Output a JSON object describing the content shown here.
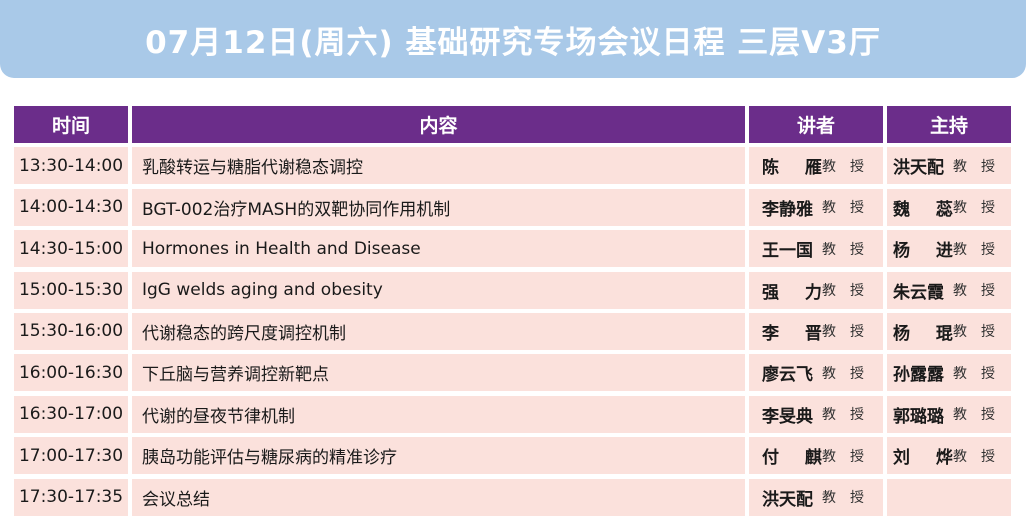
{
  "title": "07月12日(周六) 基础研究专场会议日程 三层V3厅",
  "colors": {
    "banner": "#a9c9e8",
    "header": "#6b2d8a",
    "row": "#fbe1dc"
  },
  "columns": {
    "time": "时间",
    "topic": "内容",
    "speaker": "讲者",
    "host": "主持"
  },
  "rows": [
    {
      "time": "13:30-14:00",
      "topic": "乳酸转运与糖脂代谢稳态调控",
      "speaker": "陈 雁",
      "speaker_title": "教授",
      "host": "洪天配",
      "host_title": "教授"
    },
    {
      "time": "14:00-14:30",
      "topic": "BGT-002治疗MASH的双靶协同作用机制",
      "speaker": "李静雅",
      "speaker_title": "教授",
      "host": "魏 蕊",
      "host_title": "教授"
    },
    {
      "time": "14:30-15:00",
      "topic": "Hormones in Health and Disease",
      "speaker": "王一国",
      "speaker_title": "教授",
      "host": "杨 进",
      "host_title": "教授"
    },
    {
      "time": "15:00-15:30",
      "topic": "IgG welds aging and obesity",
      "speaker": "强 力",
      "speaker_title": "教授",
      "host": "朱云霞",
      "host_title": "教授"
    },
    {
      "time": "15:30-16:00",
      "topic": "代谢稳态的跨尺度调控机制",
      "speaker": "李 晋",
      "speaker_title": "教授",
      "host": "杨 琨",
      "host_title": "教授"
    },
    {
      "time": "16:00-16:30",
      "topic": "下丘脑与营养调控新靶点",
      "speaker": "廖云飞",
      "speaker_title": "教授",
      "host": "孙露露",
      "host_title": "教授"
    },
    {
      "time": "16:30-17:00",
      "topic": "代谢的昼夜节律机制",
      "speaker": "李旻典",
      "speaker_title": "教授",
      "host": "郭璐璐",
      "host_title": "教授"
    },
    {
      "time": "17:00-17:30",
      "topic": "胰岛功能评估与糖尿病的精准诊疗",
      "speaker": "付 麒",
      "speaker_title": "教授",
      "host": "刘 烨",
      "host_title": "教授"
    },
    {
      "time": "17:30-17:35",
      "topic": "会议总结",
      "speaker": "洪天配",
      "speaker_title": "教授",
      "host": "",
      "host_title": ""
    }
  ]
}
